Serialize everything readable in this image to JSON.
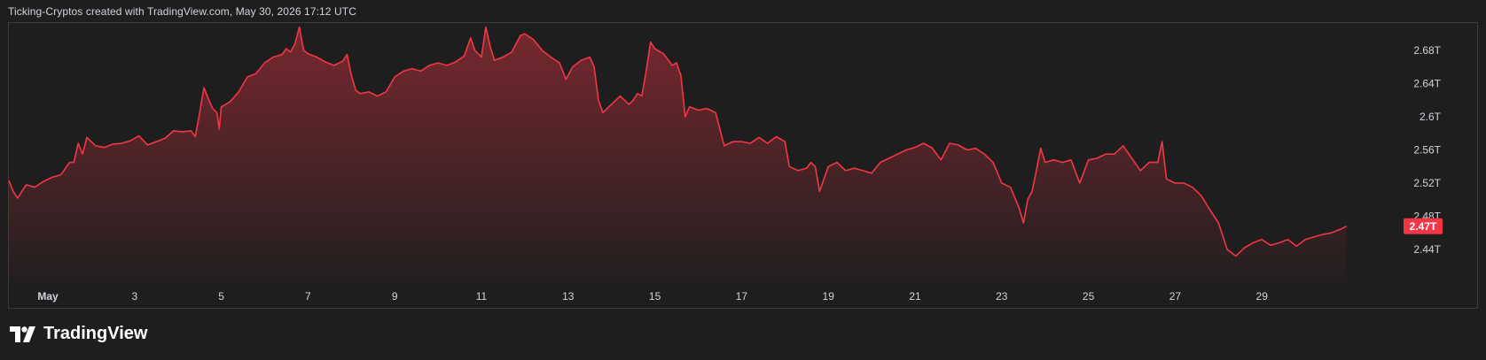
{
  "header": {
    "caption": "Ticking-Cryptos created with TradingView.com, May 30, 2026 17:12 UTC"
  },
  "footer": {
    "brand": "TradingView"
  },
  "colors": {
    "line": "#f23645",
    "background": "#1e1e1e",
    "badge": "#f23645",
    "text": "#d1d4dc"
  },
  "chart_data": {
    "type": "area",
    "title": "",
    "xlabel": "",
    "ylabel": "",
    "x_tick_labels": [
      "May",
      "3",
      "5",
      "7",
      "9",
      "11",
      "13",
      "15",
      "17",
      "19",
      "21",
      "23",
      "25",
      "27",
      "29"
    ],
    "x_tick_days": [
      1,
      3,
      5,
      7,
      9,
      11,
      13,
      15,
      17,
      19,
      21,
      23,
      25,
      27,
      29
    ],
    "y_tick_labels": [
      "2.68T",
      "2.64T",
      "2.6T",
      "2.56T",
      "2.52T",
      "2.48T",
      "2.44T"
    ],
    "y_tick_values": [
      2.68,
      2.64,
      2.6,
      2.56,
      2.52,
      2.48,
      2.44
    ],
    "ylim": [
      2.43,
      2.71
    ],
    "xlim_days": [
      0.1,
      30.95
    ],
    "last_price_label": "2.47T",
    "last_price_value": 2.468,
    "grid": false,
    "series": [
      {
        "points": [
          [
            0.1,
            2.523
          ],
          [
            0.2,
            2.51
          ],
          [
            0.3,
            2.502
          ],
          [
            0.5,
            2.518
          ],
          [
            0.7,
            2.515
          ],
          [
            0.9,
            2.522
          ],
          [
            1.1,
            2.527
          ],
          [
            1.3,
            2.53
          ],
          [
            1.5,
            2.545
          ],
          [
            1.6,
            2.545
          ],
          [
            1.7,
            2.568
          ],
          [
            1.8,
            2.555
          ],
          [
            1.9,
            2.575
          ],
          [
            2.1,
            2.565
          ],
          [
            2.3,
            2.563
          ],
          [
            2.5,
            2.567
          ],
          [
            2.7,
            2.568
          ],
          [
            2.9,
            2.571
          ],
          [
            3.1,
            2.577
          ],
          [
            3.3,
            2.566
          ],
          [
            3.5,
            2.57
          ],
          [
            3.7,
            2.574
          ],
          [
            3.9,
            2.583
          ],
          [
            4.1,
            2.582
          ],
          [
            4.3,
            2.583
          ],
          [
            4.4,
            2.576
          ],
          [
            4.5,
            2.605
          ],
          [
            4.6,
            2.635
          ],
          [
            4.7,
            2.622
          ],
          [
            4.8,
            2.61
          ],
          [
            4.9,
            2.605
          ],
          [
            4.95,
            2.585
          ],
          [
            5.0,
            2.612
          ],
          [
            5.2,
            2.618
          ],
          [
            5.4,
            2.63
          ],
          [
            5.6,
            2.648
          ],
          [
            5.8,
            2.652
          ],
          [
            6.0,
            2.665
          ],
          [
            6.2,
            2.672
          ],
          [
            6.4,
            2.675
          ],
          [
            6.5,
            2.682
          ],
          [
            6.6,
            2.678
          ],
          [
            6.7,
            2.688
          ],
          [
            6.8,
            2.708
          ],
          [
            6.9,
            2.68
          ],
          [
            7.0,
            2.676
          ],
          [
            7.2,
            2.672
          ],
          [
            7.4,
            2.666
          ],
          [
            7.6,
            2.662
          ],
          [
            7.8,
            2.667
          ],
          [
            7.9,
            2.675
          ],
          [
            8.0,
            2.65
          ],
          [
            8.1,
            2.632
          ],
          [
            8.2,
            2.628
          ],
          [
            8.4,
            2.63
          ],
          [
            8.6,
            2.625
          ],
          [
            8.8,
            2.63
          ],
          [
            9.0,
            2.648
          ],
          [
            9.2,
            2.655
          ],
          [
            9.4,
            2.658
          ],
          [
            9.6,
            2.655
          ],
          [
            9.8,
            2.662
          ],
          [
            10.0,
            2.665
          ],
          [
            10.2,
            2.662
          ],
          [
            10.4,
            2.666
          ],
          [
            10.6,
            2.673
          ],
          [
            10.75,
            2.695
          ],
          [
            10.85,
            2.68
          ],
          [
            11.0,
            2.672
          ],
          [
            11.1,
            2.708
          ],
          [
            11.2,
            2.685
          ],
          [
            11.3,
            2.668
          ],
          [
            11.5,
            2.672
          ],
          [
            11.7,
            2.678
          ],
          [
            11.9,
            2.698
          ],
          [
            12.0,
            2.7
          ],
          [
            12.2,
            2.693
          ],
          [
            12.4,
            2.68
          ],
          [
            12.6,
            2.672
          ],
          [
            12.8,
            2.665
          ],
          [
            12.95,
            2.645
          ],
          [
            13.1,
            2.66
          ],
          [
            13.3,
            2.668
          ],
          [
            13.5,
            2.672
          ],
          [
            13.6,
            2.66
          ],
          [
            13.7,
            2.62
          ],
          [
            13.8,
            2.605
          ],
          [
            14.0,
            2.615
          ],
          [
            14.2,
            2.625
          ],
          [
            14.4,
            2.615
          ],
          [
            14.5,
            2.62
          ],
          [
            14.6,
            2.628
          ],
          [
            14.7,
            2.625
          ],
          [
            14.8,
            2.655
          ],
          [
            14.9,
            2.69
          ],
          [
            15.0,
            2.682
          ],
          [
            15.2,
            2.676
          ],
          [
            15.4,
            2.662
          ],
          [
            15.5,
            2.665
          ],
          [
            15.6,
            2.65
          ],
          [
            15.7,
            2.6
          ],
          [
            15.8,
            2.612
          ],
          [
            16.0,
            2.608
          ],
          [
            16.2,
            2.61
          ],
          [
            16.4,
            2.605
          ],
          [
            16.6,
            2.565
          ],
          [
            16.8,
            2.57
          ],
          [
            17.0,
            2.57
          ],
          [
            17.2,
            2.568
          ],
          [
            17.4,
            2.575
          ],
          [
            17.6,
            2.568
          ],
          [
            17.8,
            2.576
          ],
          [
            18.0,
            2.57
          ],
          [
            18.1,
            2.54
          ],
          [
            18.3,
            2.535
          ],
          [
            18.5,
            2.538
          ],
          [
            18.6,
            2.545
          ],
          [
            18.7,
            2.54
          ],
          [
            18.8,
            2.51
          ],
          [
            19.0,
            2.54
          ],
          [
            19.2,
            2.545
          ],
          [
            19.4,
            2.535
          ],
          [
            19.6,
            2.538
          ],
          [
            19.8,
            2.535
          ],
          [
            20.0,
            2.532
          ],
          [
            20.2,
            2.545
          ],
          [
            20.4,
            2.55
          ],
          [
            20.6,
            2.555
          ],
          [
            20.8,
            2.56
          ],
          [
            21.0,
            2.563
          ],
          [
            21.2,
            2.568
          ],
          [
            21.4,
            2.562
          ],
          [
            21.6,
            2.548
          ],
          [
            21.8,
            2.568
          ],
          [
            22.0,
            2.566
          ],
          [
            22.2,
            2.56
          ],
          [
            22.4,
            2.562
          ],
          [
            22.6,
            2.555
          ],
          [
            22.8,
            2.545
          ],
          [
            23.0,
            2.52
          ],
          [
            23.2,
            2.515
          ],
          [
            23.4,
            2.49
          ],
          [
            23.5,
            2.472
          ],
          [
            23.6,
            2.5
          ],
          [
            23.7,
            2.51
          ],
          [
            23.8,
            2.535
          ],
          [
            23.9,
            2.562
          ],
          [
            24.0,
            2.545
          ],
          [
            24.2,
            2.548
          ],
          [
            24.4,
            2.545
          ],
          [
            24.6,
            2.548
          ],
          [
            24.8,
            2.52
          ],
          [
            25.0,
            2.548
          ],
          [
            25.2,
            2.55
          ],
          [
            25.4,
            2.555
          ],
          [
            25.6,
            2.555
          ],
          [
            25.8,
            2.565
          ],
          [
            26.0,
            2.55
          ],
          [
            26.2,
            2.535
          ],
          [
            26.4,
            2.545
          ],
          [
            26.6,
            2.545
          ],
          [
            26.7,
            2.57
          ],
          [
            26.8,
            2.525
          ],
          [
            27.0,
            2.52
          ],
          [
            27.2,
            2.52
          ],
          [
            27.4,
            2.515
          ],
          [
            27.6,
            2.505
          ],
          [
            27.8,
            2.488
          ],
          [
            28.0,
            2.472
          ],
          [
            28.2,
            2.44
          ],
          [
            28.4,
            2.432
          ],
          [
            28.6,
            2.442
          ],
          [
            28.8,
            2.448
          ],
          [
            29.0,
            2.452
          ],
          [
            29.2,
            2.445
          ],
          [
            29.4,
            2.448
          ],
          [
            29.6,
            2.452
          ],
          [
            29.8,
            2.444
          ],
          [
            30.0,
            2.452
          ],
          [
            30.2,
            2.455
          ],
          [
            30.4,
            2.458
          ],
          [
            30.6,
            2.46
          ],
          [
            30.8,
            2.464
          ],
          [
            30.95,
            2.468
          ]
        ]
      }
    ]
  }
}
